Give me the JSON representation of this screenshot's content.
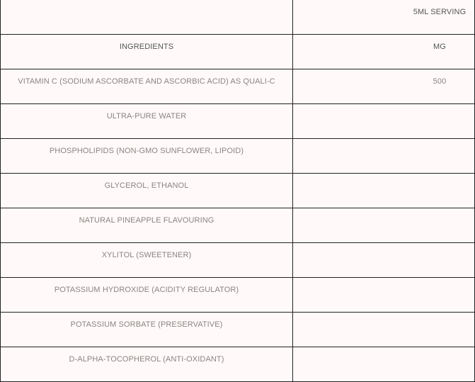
{
  "table": {
    "header": {
      "ingredient": "",
      "serving": "5ML SERVING"
    },
    "columns": {
      "ingredient": "INGREDIENTS",
      "amount": "MG"
    },
    "rows": [
      {
        "ingredient": "VITAMIN C (SODIUM ASCORBATE AND ASCORBIC ACID) AS QUALI-C",
        "amount": "500"
      },
      {
        "ingredient": "ULTRA-PURE WATER",
        "amount": ""
      },
      {
        "ingredient": "PHOSPHOLIPIDS (NON-GMO SUNFLOWER, LIPOID)",
        "amount": ""
      },
      {
        "ingredient": "GLYCEROL, ETHANOL",
        "amount": ""
      },
      {
        "ingredient": "NATURAL PINEAPPLE FLAVOURING",
        "amount": ""
      },
      {
        "ingredient": "XYLITOL (SWEETENER)",
        "amount": ""
      },
      {
        "ingredient": "POTASSIUM HYDROXIDE (ACIDITY REGULATOR)",
        "amount": ""
      },
      {
        "ingredient": "POTASSIUM SORBATE (PRESERVATIVE)",
        "amount": ""
      },
      {
        "ingredient": "D-ALPHA-TOCOPHEROL (ANTI-OXIDANT)",
        "amount": ""
      }
    ]
  }
}
